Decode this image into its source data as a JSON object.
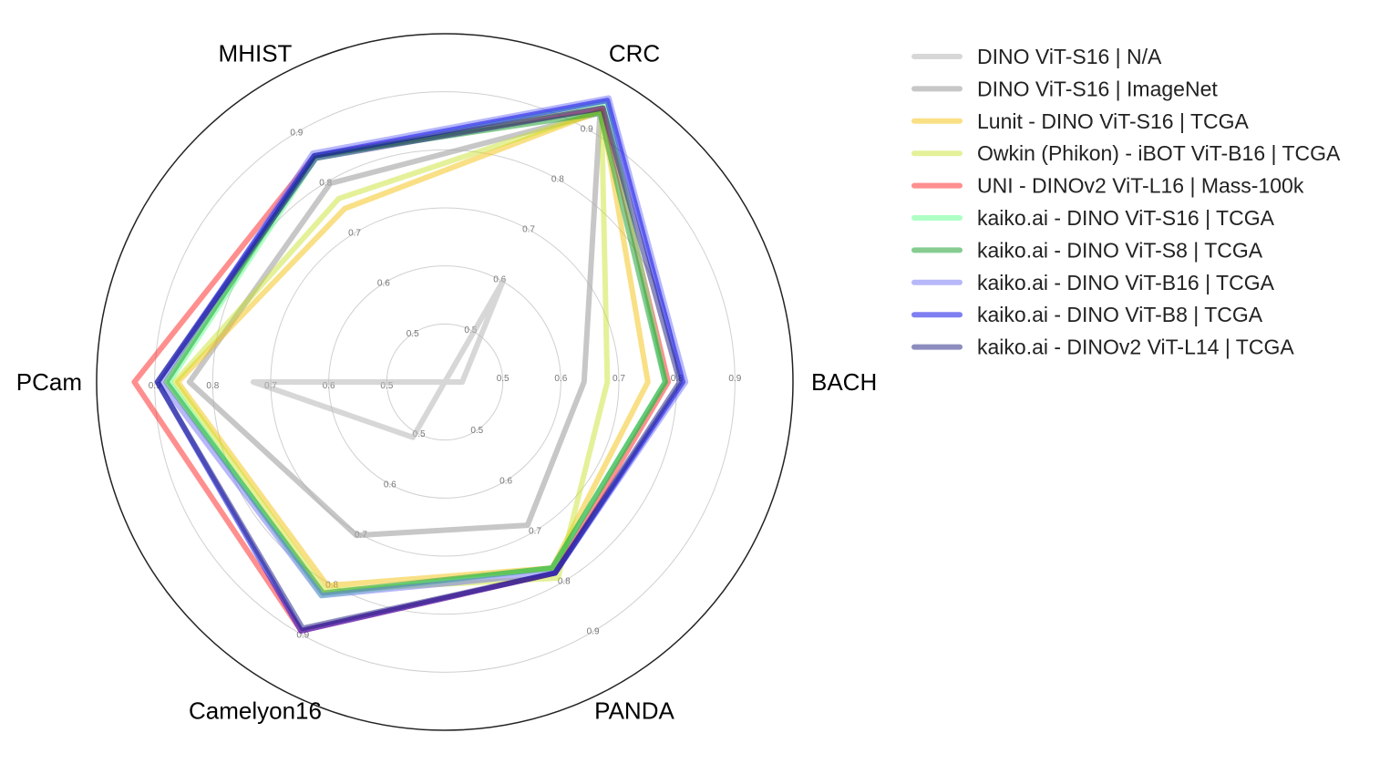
{
  "chart_data": {
    "type": "radar",
    "axes": [
      "BACH",
      "CRC",
      "MHIST",
      "PCam",
      "Camelyon16",
      "PANDA"
    ],
    "rlim": [
      0.4,
      1.0
    ],
    "ticks": [
      "0.5",
      "0.6",
      "0.7",
      "0.8",
      "0.9"
    ],
    "legend_position": "right",
    "series": [
      {
        "name": "DINO ViT-S16 | N/A",
        "color": "#bdbdbd",
        "opacity": 0.6,
        "values": [
          0.43,
          0.6,
          0.4,
          0.73,
          0.51,
          0.4
        ]
      },
      {
        "name": "DINO ViT-S16 | ImageNet",
        "color": "#a9a9a9",
        "opacity": 0.65,
        "values": [
          0.64,
          0.935,
          0.795,
          0.84,
          0.705,
          0.685
        ]
      },
      {
        "name": "Lunit - DINO ViT-S16 | TCGA",
        "color": "#f4c20d",
        "opacity": 0.5,
        "values": [
          0.75,
          0.94,
          0.745,
          0.86,
          0.805,
          0.77
        ]
      },
      {
        "name": "Owkin (Phikon) - iBOT ViT-B16 | TCGA",
        "color": "#c5e01c",
        "opacity": 0.45,
        "values": [
          0.68,
          0.94,
          0.765,
          0.865,
          0.815,
          0.79
        ]
      },
      {
        "name": "UNI - DINOv2 ViT-L16 | Mass-100k",
        "color": "#ff1f1f",
        "opacity": 0.5,
        "values": [
          0.785,
          0.945,
          0.85,
          0.935,
          0.895,
          0.78
        ]
      },
      {
        "name": "kaiko.ai - DINO ViT-S16 | TCGA",
        "color": "#4cff7f",
        "opacity": 0.45,
        "values": [
          0.78,
          0.955,
          0.845,
          0.875,
          0.825,
          0.77
        ]
      },
      {
        "name": "kaiko.ai - DINO ViT-S8 | TCGA",
        "color": "#22a336",
        "opacity": 0.55,
        "values": [
          0.78,
          0.935,
          0.85,
          0.88,
          0.82,
          0.77
        ]
      },
      {
        "name": "kaiko.ai - DINO ViT-B16 | TCGA",
        "color": "#6f6ff5",
        "opacity": 0.5,
        "values": [
          0.815,
          0.965,
          0.855,
          0.89,
          0.825,
          0.78
        ]
      },
      {
        "name": "kaiko.ai - DINO ViT-B8 | TCGA",
        "color": "#0000e6",
        "opacity": 0.5,
        "values": [
          0.81,
          0.96,
          0.85,
          0.895,
          0.895,
          0.78
        ]
      },
      {
        "name": "kaiko.ai - DINOv2 ViT-L14 | TCGA",
        "color": "#1a1a80",
        "opacity": 0.5,
        "values": [
          0.805,
          0.945,
          0.845,
          0.895,
          0.89,
          0.78
        ]
      }
    ]
  }
}
